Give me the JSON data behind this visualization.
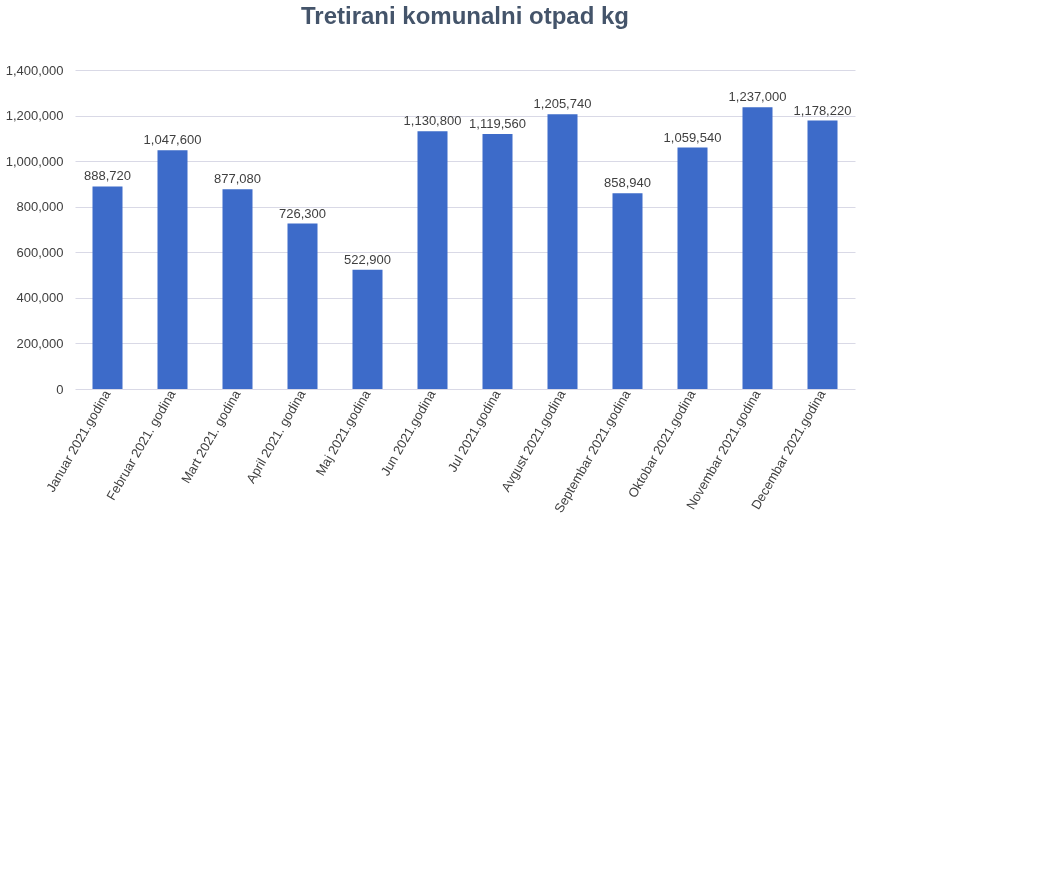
{
  "chart_data": {
    "type": "bar",
    "title": "Tretirani komunalni otpad kg",
    "categories": [
      "Januar 2021.godina",
      "Februar 2021. godina",
      "Mart 2021. godina",
      "April 2021. godina",
      "Maj 2021.godina",
      "Jun 2021.godina",
      "Jul 2021.godina",
      "Avgust 2021.godina",
      "Septembar 2021.godina",
      "Oktobar 2021.godina",
      "Novembar 2021.godina",
      "Decembar 2021.godina"
    ],
    "values": [
      888720,
      1047600,
      877080,
      726300,
      522900,
      1130800,
      1119560,
      1205740,
      858940,
      1059540,
      1237000,
      1178220
    ],
    "value_labels": [
      "888,720",
      "1,047,600",
      "877,080",
      "726,300",
      "522,900",
      "1,130,800",
      "1,119,560",
      "1,205,740",
      "858,940",
      "1,059,540",
      "1,237,000",
      "1,178,220"
    ],
    "color": "#3d6bc9",
    "ylim": [
      0,
      1400000
    ],
    "yticks": [
      0,
      {
        "value": 200000,
        "label": "200,000"
      },
      {
        "value": 400000,
        "label": "400,000"
      },
      {
        "value": 600000,
        "label": "600,000"
      },
      {
        "value": 800000,
        "label": "800,000"
      },
      {
        "value": 1000000,
        "label": "1,000,000"
      },
      {
        "value": 1200000,
        "label": "1,200,000"
      },
      {
        "value": 1400000,
        "label": "1,400,000"
      }
    ],
    "grid": "y"
  }
}
